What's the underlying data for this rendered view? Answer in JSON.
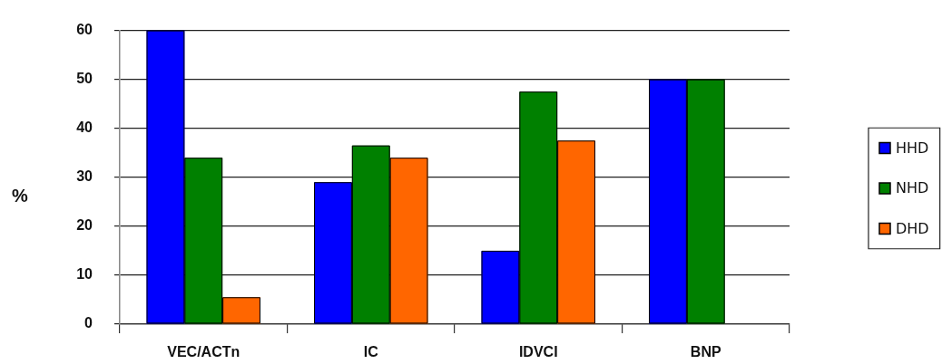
{
  "chart_data": {
    "type": "bar",
    "ylabel": "%",
    "categories": [
      "VEC/ACTn",
      "IC",
      "IDVCI",
      "BNP"
    ],
    "series": [
      {
        "name": "HHD",
        "color": "#0000ff",
        "values": [
          60,
          29,
          15,
          50
        ]
      },
      {
        "name": "NHD",
        "color": "#008000",
        "values": [
          34,
          36.5,
          47.5,
          50
        ]
      },
      {
        "name": "DHD",
        "color": "#ff6600",
        "values": [
          5.5,
          34,
          37.5,
          0
        ]
      }
    ],
    "ylim": [
      0,
      60
    ],
    "yticks": [
      0,
      10,
      20,
      30,
      40,
      50,
      60
    ],
    "grid": "y",
    "legend": "right"
  }
}
